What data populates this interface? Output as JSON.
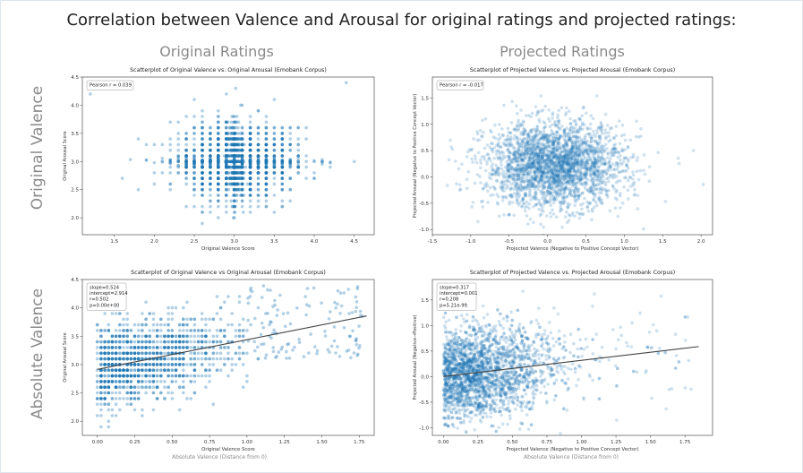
{
  "slide": {
    "title": "Correlation between Valence and Arousal for original ratings and projected ratings:",
    "col_left": "Original Ratings",
    "col_right": "Projected Ratings",
    "row_top": "Original Valence",
    "row_bottom": "Absolute Valence",
    "xsub_left": "Absolute Valence (Distance from 0)",
    "xsub_right": "Absolute Valence (Distance from 0)"
  },
  "chart_data": [
    {
      "id": "p1",
      "type": "scatter",
      "title": "Scatterplot of Original Valence vs. Original Arousal (Emobank Corpus)",
      "xlabel": "Original Valence Score",
      "ylabel": "Original Arousal Score",
      "xlim": [
        1.1,
        4.75
      ],
      "ylim": [
        1.7,
        4.5
      ],
      "xticks": [
        1.5,
        2.0,
        2.5,
        3.0,
        3.5,
        4.0,
        4.5
      ],
      "yticks": [
        2.0,
        2.5,
        3.0,
        3.5,
        4.0,
        4.5
      ],
      "annotation": [
        "Pearson r = 0.039"
      ],
      "point_color": "#1f77b4",
      "distribution": "discrete grid centered at (3.0, 3.0), sd ~0.35, approx. 1600 points",
      "points_sample": [
        [
          3.0,
          3.0
        ],
        [
          2.8,
          3.1
        ],
        [
          3.2,
          2.9
        ],
        [
          3.0,
          2.4
        ],
        [
          2.6,
          3.4
        ],
        [
          3.4,
          3.2
        ],
        [
          2.4,
          2.8
        ],
        [
          3.6,
          3.0
        ],
        [
          1.2,
          4.2
        ],
        [
          4.4,
          4.4
        ],
        [
          4.5,
          3.0
        ]
      ]
    },
    {
      "id": "p2",
      "type": "scatter",
      "title": "Scatterplot of Projected Valence vs. Projected Arousal (Emobank Corpus)",
      "xlabel": "Projected Valence (Negative to Positive Concept Vector)",
      "ylabel": "Projected Arousal (Negative to Positive Concept Vector)",
      "xlim": [
        -1.5,
        2.15
      ],
      "ylim": [
        -1.1,
        1.9
      ],
      "xticks": [
        -1.5,
        -1.0,
        -0.5,
        0.0,
        0.5,
        1.0,
        1.5,
        2.0
      ],
      "yticks": [
        -1.0,
        -0.5,
        0.0,
        0.5,
        1.0,
        1.5
      ],
      "annotation": [
        "Pearson r = -0.017"
      ],
      "point_color": "#1f77b4",
      "distribution": "continuous cloud centered at (0.1, 0.2), sd ~0.45 x 0.40, approx. 2500 points",
      "points_sample": [
        [
          0.1,
          0.2
        ],
        [
          -0.5,
          0.4
        ],
        [
          0.6,
          -0.2
        ],
        [
          1.0,
          0.8
        ],
        [
          -1.2,
          0.3
        ],
        [
          1.9,
          0.5
        ]
      ]
    },
    {
      "id": "p3",
      "type": "scatter",
      "title": "Scatterplot of Original Valence vs Original Arousal (Emobank Corpus)",
      "xlabel": "Original Valence Score",
      "ylabel": "Original Arousal Score",
      "xlim": [
        -0.1,
        1.85
      ],
      "ylim": [
        1.75,
        4.5
      ],
      "xticks": [
        0.0,
        0.25,
        0.5,
        0.75,
        1.0,
        1.25,
        1.5,
        1.75
      ],
      "yticks": [
        2.0,
        2.5,
        3.0,
        3.5,
        4.0,
        4.5
      ],
      "annotation": [
        "slope=0.524",
        "intercept=2.914",
        "r=0.502",
        "p=0.00e+00"
      ],
      "regression": {
        "slope": 0.524,
        "intercept": 2.914,
        "x_range": [
          0.0,
          1.8
        ]
      },
      "point_color": "#1f77b4",
      "distribution": "absolute valence discrete (0 to 1.0 dense, sparse to 1.8), arousal grid around 3.0, approx. 1400 points"
    },
    {
      "id": "p4",
      "type": "scatter",
      "title": "Scatterplot of Projected Valence vs. Projected Arousal (Emobank Corpus)",
      "xlabel": "Projected Valence (Negative to Positive Concept Vector)",
      "ylabel": "Projected Arousal (Negative→Positive)",
      "xlim": [
        -0.08,
        1.95
      ],
      "ylim": [
        -1.15,
        1.9
      ],
      "xticks": [
        0.0,
        0.25,
        0.5,
        0.75,
        1.0,
        1.25,
        1.5,
        1.75
      ],
      "yticks": [
        -1.0,
        -0.5,
        0.0,
        0.5,
        1.0,
        1.5
      ],
      "annotation": [
        "slope=0.317",
        "intercept=0.001",
        "r=0.208",
        "p=5.21e-99"
      ],
      "regression": {
        "slope": 0.317,
        "intercept": 0.001,
        "x_range": [
          0.0,
          1.85
        ]
      },
      "point_color": "#1f77b4",
      "distribution": "absolute projected valence 0 to ~1.9 (dense below 0.8), arousal centered at 0.1, approx. 2500 points"
    }
  ]
}
